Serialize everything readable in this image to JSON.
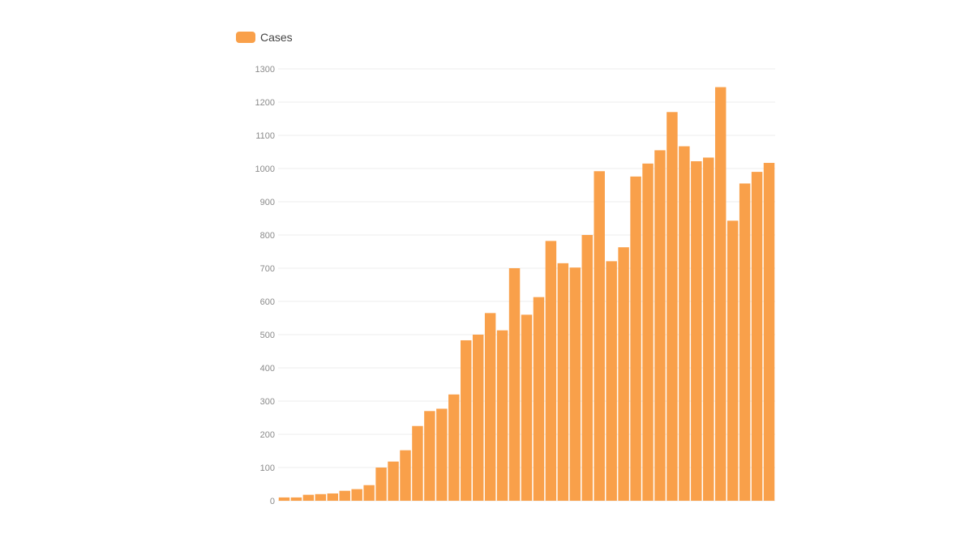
{
  "colors": {
    "bar": "#f9a04a",
    "grid": "#ececec",
    "tick_text": "#8a8a8a",
    "legend_text": "#444444"
  },
  "legend": {
    "label": "Cases"
  },
  "chart_data": {
    "type": "bar",
    "title": "",
    "xlabel": "",
    "ylabel": "",
    "ylim": [
      0,
      1300
    ],
    "yticks": [
      0,
      100,
      200,
      300,
      400,
      500,
      600,
      700,
      800,
      900,
      1000,
      1100,
      1200,
      1300
    ],
    "grid": true,
    "legend_position": "top-left",
    "series": [
      {
        "name": "Cases",
        "values": [
          10,
          10,
          18,
          20,
          22,
          30,
          35,
          47,
          100,
          118,
          152,
          225,
          270,
          277,
          320,
          483,
          500,
          565,
          513,
          700,
          560,
          613,
          782,
          715,
          702,
          800,
          992,
          721,
          763,
          976,
          1015,
          1055,
          1170,
          1067,
          1022,
          1033,
          1245,
          843,
          955,
          990,
          1017
        ]
      }
    ]
  }
}
